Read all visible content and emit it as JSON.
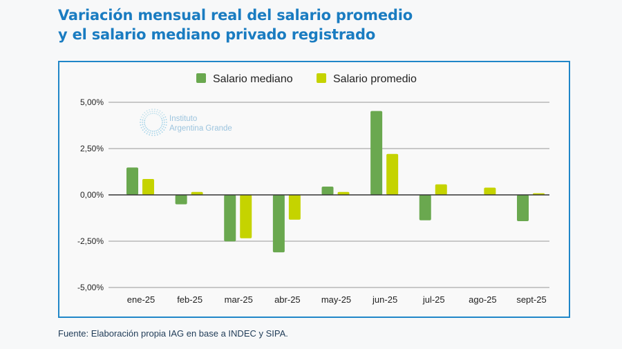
{
  "title_line1": "Variación mensual real del salario promedio",
  "title_line2": "y el salario mediano privado registrado",
  "source": "Fuente: Elaboración propia IAG en base a INDEC y SIPA.",
  "watermark": {
    "line1": "Instituto",
    "line2": "Argentina Grande"
  },
  "chart_data": {
    "type": "bar",
    "categories": [
      "ene-25",
      "feb-25",
      "mar-25",
      "abr-25",
      "may-25",
      "jun-25",
      "jul-25",
      "ago-25",
      "sept-25"
    ],
    "series": [
      {
        "name": "Salario mediano",
        "color": "#6aa84f",
        "values": [
          1.48,
          -0.51,
          -2.51,
          -3.1,
          0.45,
          4.53,
          -1.37,
          0,
          -1.42
        ]
      },
      {
        "name": "Salario promedio",
        "color": "#c5d300",
        "values": [
          0.86,
          0.16,
          -2.34,
          -1.34,
          0.16,
          2.21,
          0.57,
          0.39,
          0.09
        ]
      }
    ],
    "ylim": [
      -5,
      5
    ],
    "yticks": [
      5,
      2.5,
      0,
      -2.5,
      -5
    ],
    "ytick_labels": [
      "5,00%",
      "2,50%",
      "0,00%",
      "-2,50%",
      "-5,00%"
    ],
    "grid": true,
    "legend": "top-center"
  }
}
